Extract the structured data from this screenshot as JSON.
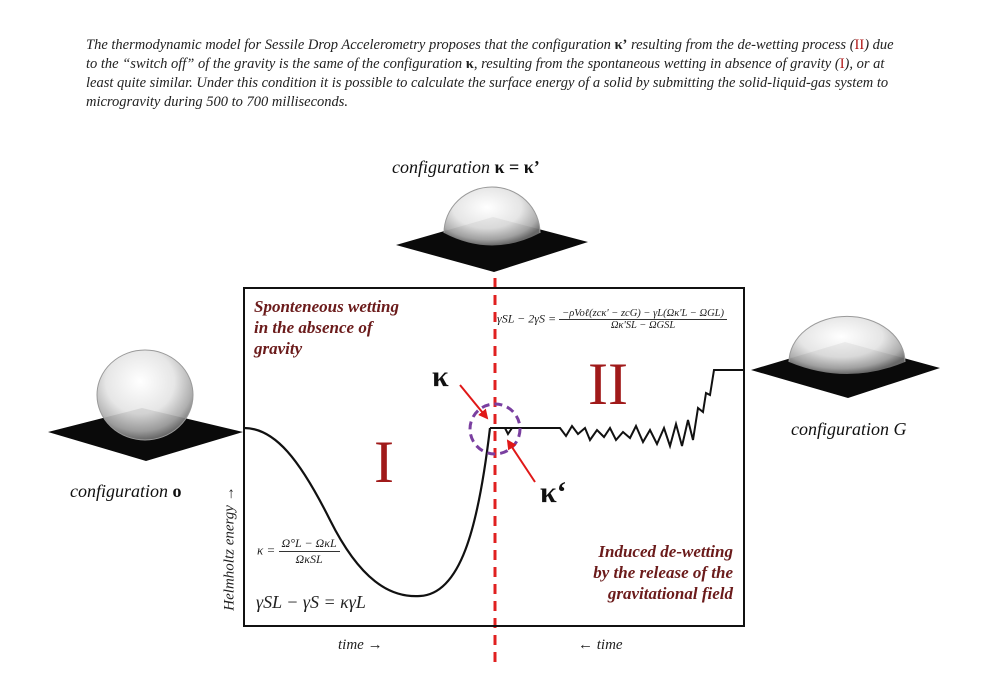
{
  "intro": {
    "p1": "The thermodynamic model for Sessile Drop Accelerometry proposes that the configuration ",
    "p2": " resulting from the de-wetting process (",
    "p3": ") due to the “switch off” of the gravity is the same of the configuration ",
    "p4": ", resulting from the spontaneous wetting in absence of gravity (",
    "p5": "), or at least quite similar. Under this condition it is possible to calculate the surface energy of a solid by submitting the solid-liquid-gas system to microgravity during 500 to 700 milliseconds.",
    "kappa_prime": "κ’",
    "kappa": "κ",
    "roman_II": "II",
    "roman_I": "I"
  },
  "labels": {
    "config_top_prefix": "configuration ",
    "config_top_symbol": "κ = κ’",
    "config_o_prefix": "configuration ",
    "config_o_symbol": "o",
    "config_G": "configuration G",
    "spontaneous": [
      "Sponteneous wetting",
      "in the absence of",
      "gravity"
    ],
    "induced": [
      "Induced de-wetting",
      "by the release of the",
      "gravitational field"
    ],
    "region_I": "I",
    "region_II": "II",
    "kappa": "κ",
    "kappa_prime": "κ‘",
    "ylabel": "Helmholtz energy →",
    "xlabel_left": "time →",
    "xlabel_right": "← time"
  },
  "formulas": {
    "kappa_lhs": "κ =",
    "kappa_num": "Ω°L − ΩκL",
    "kappa_den": "ΩκSL",
    "gamma_eq": "γSL − γS = κγL",
    "right_lhs": "γSL − 2γS =",
    "right_num": "−ρVoℓ(zcκ' − zcG) − γL(Ωκ'L − ΩGL)",
    "right_den": "Ωκ'SL − ΩGSL"
  },
  "colors": {
    "accent_red": "#b01818",
    "maroon": "#6b1b1b",
    "dashed_line": "#e02020",
    "circle": "#7a3fa0",
    "arrow": "#e01818"
  }
}
